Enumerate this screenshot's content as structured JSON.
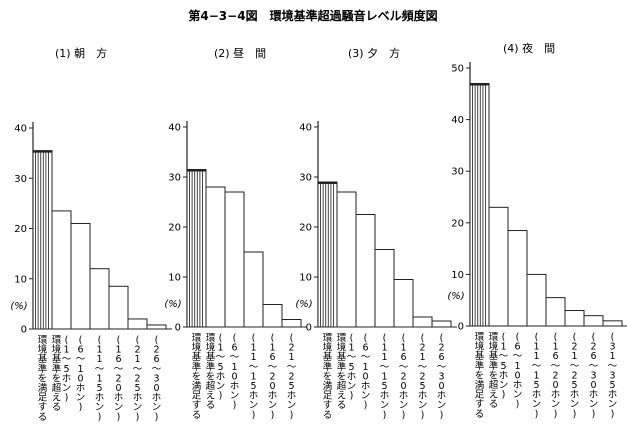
{
  "figure": {
    "title": "第4−3−4図　環境基準超過騒音レベル頻度図",
    "ylabel": "(%)"
  },
  "chart_data": [
    {
      "type": "bar",
      "title": "(1) 朝　方",
      "ylabel": "(%)",
      "ylim": [
        0,
        40
      ],
      "yticks": [
        "0",
        "10",
        "20",
        "30",
        "40"
      ],
      "categories": [
        "環境基準を満足する",
        "環境基準を超える\n(1〜5ホン)",
        "(6〜10ホン)",
        "(11〜15ホン)",
        "(16〜20ホン)",
        "(21〜25ホン)",
        "(26〜30ホン)"
      ],
      "values": [
        35.5,
        23.5,
        21,
        12,
        8.5,
        2,
        0.8
      ]
    },
    {
      "type": "bar",
      "title": "(2) 昼　間",
      "ylabel": "(%)",
      "ylim": [
        0,
        40
      ],
      "yticks": [
        "0",
        "10",
        "20",
        "30",
        "40"
      ],
      "categories": [
        "環境基準を満足する",
        "環境基準を超える\n(1〜5ホン)",
        "(6〜10ホン)",
        "(11〜15ホン)",
        "(16〜20ホン)",
        "(21〜25ホン)"
      ],
      "values": [
        31.5,
        28,
        27,
        15,
        4.5,
        1.5
      ]
    },
    {
      "type": "bar",
      "title": "(3) 夕　方",
      "ylabel": "(%)",
      "ylim": [
        0,
        40
      ],
      "yticks": [
        "0",
        "10",
        "20",
        "30",
        "40"
      ],
      "categories": [
        "環境基準を満足する",
        "環境基準を超える\n(1〜5ホン)",
        "(6〜10ホン)",
        "(11〜15ホン)",
        "(16〜20ホン)",
        "(21〜25ホン)",
        "(26〜30ホン)"
      ],
      "values": [
        29,
        27,
        22.5,
        15.5,
        9.5,
        2,
        1.2
      ]
    },
    {
      "type": "bar",
      "title": "(4) 夜　間",
      "ylabel": "(%)",
      "ylim": [
        0,
        50
      ],
      "yticks": [
        "0",
        "10",
        "20",
        "30",
        "40",
        "50"
      ],
      "categories": [
        "環境基準を満足する",
        "環境基準を超える\n(1〜5ホン)",
        "(6〜10ホン)",
        "(11〜15ホン)",
        "(16〜20ホン)",
        "(21〜25ホン)",
        "(26〜30ホン)",
        "(31〜35ホン)"
      ],
      "values": [
        47,
        23,
        18.5,
        10,
        5.5,
        3,
        2,
        1
      ]
    }
  ]
}
